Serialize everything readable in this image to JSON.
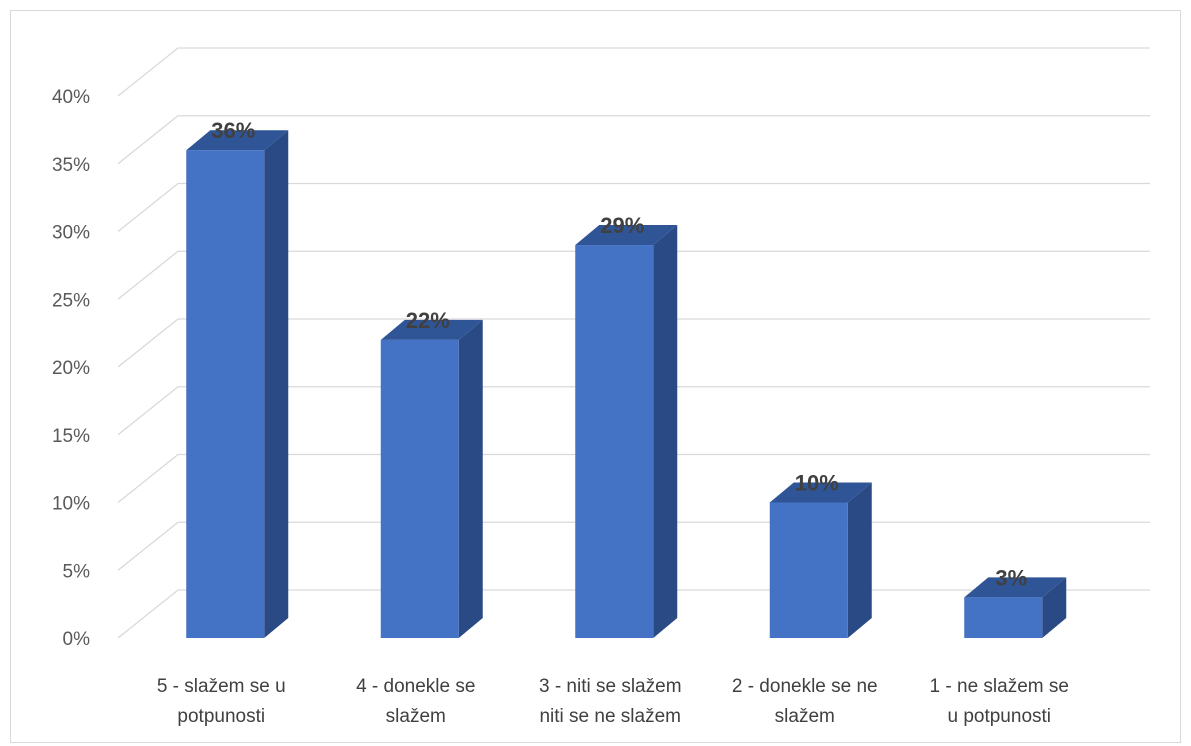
{
  "chart_data": {
    "type": "bar",
    "style": "3d-column",
    "categories": [
      [
        "5 -  slažem se u",
        "potpunosti"
      ],
      [
        "4 - donekle se",
        "slažem"
      ],
      [
        "3 - niti se slažem",
        "niti se ne slažem"
      ],
      [
        "2 - donekle se ne",
        "slažem"
      ],
      [
        "1 - ne slažem se",
        "u potpunosti"
      ]
    ],
    "values": [
      36,
      22,
      29,
      10,
      3
    ],
    "data_labels": [
      "36%",
      "22%",
      "29%",
      "10%",
      "3%"
    ],
    "y_ticks": [
      "0%",
      "5%",
      "10%",
      "15%",
      "20%",
      "25%",
      "30%",
      "35%",
      "40%"
    ],
    "ylim": [
      0,
      40
    ],
    "grid": true,
    "legend": "none",
    "colors": {
      "front": "#4472c4",
      "side": "#2a4a85",
      "top": "#2f5597",
      "grid": "#d9d9d9"
    }
  }
}
